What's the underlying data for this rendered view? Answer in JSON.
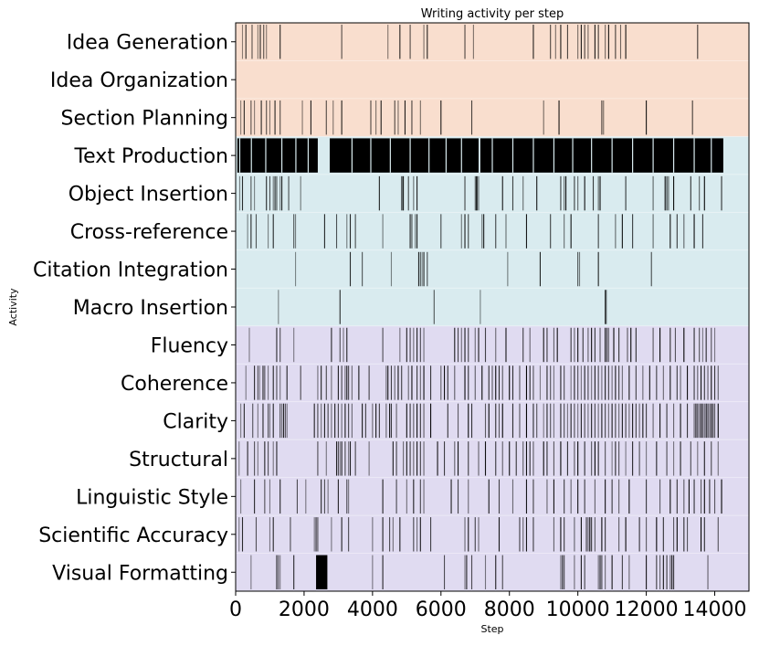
{
  "chart_data": {
    "type": "heatmap",
    "title": "Writing activity per step",
    "xlabel": "Step",
    "ylabel": "Activity",
    "xlim": [
      0,
      15000
    ],
    "x_ticks": [
      0,
      2000,
      4000,
      6000,
      8000,
      10000,
      12000,
      14000
    ],
    "x_tick_labels": [
      "0",
      "2000",
      "4000",
      "6000",
      "8000",
      "10000",
      "12000",
      "14000"
    ],
    "group_colors": {
      "planning": "#f9dece",
      "implementation": "#d9ebef",
      "revision": "#e0dbf1"
    },
    "rows": [
      {
        "label": "Idea Generation",
        "group": "planning",
        "events": [
          200,
          300,
          480,
          650,
          720,
          820,
          900,
          1300,
          3100,
          4450,
          4800,
          5100,
          5500,
          5600,
          6700,
          6950,
          8700,
          9200,
          9350,
          9500,
          9700,
          10000,
          10100,
          10200,
          10300,
          10500,
          10600,
          10800,
          10900,
          11100,
          11250,
          11400,
          13500
        ]
      },
      {
        "label": "Idea Organization",
        "group": "planning",
        "events": []
      },
      {
        "label": "Section Planning",
        "group": "planning",
        "events": [
          150,
          250,
          450,
          550,
          750,
          900,
          1000,
          1150,
          1300,
          1950,
          2200,
          2650,
          2850,
          3100,
          3950,
          4100,
          4250,
          4650,
          4750,
          4950,
          5150,
          5400,
          6000,
          6900,
          9000,
          9450,
          10700,
          10750,
          12000,
          13350
        ]
      },
      {
        "label": "Text Production",
        "group": "implementation",
        "events": [],
        "dense_segments": [
          [
            50,
            2400
          ],
          [
            2750,
            7100
          ],
          [
            7150,
            14250
          ]
        ],
        "gaps": [
          120,
          460,
          880,
          1350,
          1760,
          2120,
          3400,
          3950,
          4520,
          5100,
          5650,
          6150,
          6600,
          7500,
          8100,
          8700,
          9300,
          9850,
          10400,
          11000,
          11600,
          12200,
          12800,
          13400,
          13900
        ]
      },
      {
        "label": "Object Insertion",
        "group": "implementation",
        "events": [
          120,
          200,
          450,
          550,
          900,
          1000,
          1100,
          1150,
          1200,
          1300,
          1350,
          1550,
          1900,
          4200,
          4850,
          4880,
          4900,
          5050,
          5200,
          5300,
          6700,
          7000,
          7030,
          7060,
          7100,
          7800,
          8100,
          8400,
          8800,
          9500,
          9600,
          9650,
          9900,
          10000,
          10200,
          10450,
          10600,
          10650,
          11400,
          12200,
          12550,
          12600,
          12650,
          12800,
          13300,
          13550,
          13700,
          14200
        ]
      },
      {
        "label": "Cross-reference",
        "group": "implementation",
        "events": [
          350,
          450,
          600,
          950,
          1100,
          1700,
          1750,
          2600,
          2950,
          3250,
          3350,
          3500,
          4300,
          5100,
          5150,
          5250,
          5300,
          6000,
          6600,
          6700,
          6800,
          7200,
          7250,
          7600,
          7900,
          8500,
          9200,
          9600,
          9800,
          10600,
          11100,
          11300,
          11600,
          12200,
          12700,
          12900,
          13100,
          13400,
          13650
        ]
      },
      {
        "label": "Citation Integration",
        "group": "implementation",
        "events": [
          1750,
          3350,
          3700,
          4550,
          5350,
          5400,
          5450,
          5500,
          5600,
          7950,
          8900,
          10000,
          10050,
          10600,
          12150
        ]
      },
      {
        "label": "Macro Insertion",
        "group": "implementation",
        "events": [
          1250,
          3050,
          5800,
          7150,
          10800,
          10830
        ]
      },
      {
        "label": "Fluency",
        "group": "revision",
        "events": [
          400,
          1200,
          1300,
          1700,
          2800,
          3050,
          3150,
          3250,
          4300,
          4800,
          5000,
          5100,
          5200,
          5300,
          5400,
          5500,
          6400,
          6500,
          6600,
          6700,
          6800,
          7000,
          7100,
          7300,
          7600,
          7900,
          8400,
          8600,
          9000,
          9100,
          9300,
          9400,
          9800,
          9900,
          10000,
          10150,
          10300,
          10400,
          10500,
          10650,
          10800,
          10850,
          10900,
          11050,
          11200,
          11450,
          11550,
          11700,
          12200,
          12400,
          12700,
          12850,
          13100,
          13400,
          13550,
          13650,
          13750,
          13900,
          14000
        ]
      },
      {
        "label": "Coherence",
        "group": "revision",
        "events": [
          300,
          550,
          650,
          700,
          800,
          850,
          950,
          1100,
          1200,
          1300,
          1500,
          1900,
          2400,
          2500,
          2650,
          2800,
          3000,
          3100,
          3200,
          3250,
          3300,
          3400,
          3600,
          3900,
          4400,
          4450,
          4550,
          4650,
          4750,
          4850,
          5050,
          5150,
          5300,
          5400,
          5500,
          5700,
          6000,
          6100,
          6200,
          6400,
          6700,
          6800,
          7000,
          7200,
          7400,
          7500,
          7600,
          7700,
          7800,
          8000,
          8100,
          8300,
          8500,
          8600,
          8700,
          8900,
          9100,
          9200,
          9300,
          9500,
          9600,
          9800,
          9900,
          10000,
          10100,
          10200,
          10300,
          10400,
          10500,
          10600,
          10700,
          10800,
          10900,
          11000,
          11100,
          11200,
          11300,
          11500,
          11700,
          11900,
          12100,
          12300,
          12500,
          12700,
          12900,
          13000,
          13200,
          13400,
          13500,
          13600,
          13700,
          13800,
          13900,
          14000,
          14100
        ]
      },
      {
        "label": "Clarity",
        "group": "revision",
        "events": [
          150,
          250,
          500,
          650,
          800,
          950,
          1000,
          1100,
          1300,
          1350,
          1400,
          1450,
          1500,
          2300,
          2400,
          2500,
          2600,
          2700,
          2800,
          2900,
          3000,
          3100,
          3200,
          3300,
          3400,
          3700,
          3800,
          4000,
          4100,
          4200,
          4400,
          4500,
          4550,
          4700,
          5000,
          5100,
          5200,
          5300,
          5400,
          5500,
          5700,
          6200,
          6500,
          6800,
          6900,
          7300,
          7400,
          7600,
          7700,
          7800,
          8100,
          8300,
          8500,
          8700,
          8800,
          9000,
          9100,
          9200,
          9300,
          9500,
          9600,
          9700,
          9800,
          9900,
          10000,
          10100,
          10200,
          10300,
          10400,
          10500,
          10600,
          10700,
          10800,
          10900,
          11000,
          11100,
          11200,
          11300,
          11400,
          11500,
          11600,
          11700,
          11800,
          11900,
          12000,
          12200,
          12400,
          12600,
          12800,
          13000,
          13200,
          13400,
          13450,
          13500,
          13550,
          13600,
          13650,
          13700,
          13750,
          13800,
          13850,
          13900,
          13950,
          14000,
          14100
        ]
      },
      {
        "label": "Structural",
        "group": "revision",
        "events": [
          100,
          350,
          550,
          650,
          850,
          950,
          1100,
          1200,
          2400,
          2650,
          2950,
          3000,
          3050,
          3100,
          3200,
          3300,
          3350,
          3500,
          3900,
          4600,
          4700,
          4900,
          5000,
          5100,
          5200,
          5300,
          5400,
          5500,
          5900,
          6100,
          6400,
          6500,
          6800,
          7100,
          7300,
          7600,
          7800,
          8000,
          8200,
          8400,
          8500,
          8600,
          8700,
          9000,
          9100,
          9300,
          9500,
          9700,
          9900,
          10000,
          10200,
          10400,
          10500,
          10600,
          10800,
          11000,
          11100,
          11200,
          11400,
          11600,
          11800,
          12000,
          12300,
          12600,
          12800,
          13000,
          13300,
          13500,
          13700,
          13900,
          14100
        ]
      },
      {
        "label": "Linguistic Style",
        "group": "revision",
        "events": [
          150,
          550,
          850,
          1000,
          1300,
          1800,
          2050,
          2500,
          2600,
          2700,
          3000,
          3250,
          3300,
          4300,
          4700,
          5000,
          5200,
          5400,
          5500,
          6300,
          6500,
          6800,
          7400,
          7700,
          8100,
          8500,
          8700,
          9100,
          9300,
          9600,
          9800,
          10000,
          10200,
          10500,
          10800,
          11000,
          11200,
          11500,
          12000,
          12400,
          12700,
          12900,
          13100,
          13250,
          13400,
          13600,
          13700,
          13850,
          14000,
          14200
        ]
      },
      {
        "label": "Scientific Accuracy",
        "group": "revision",
        "events": [
          100,
          200,
          600,
          1000,
          1100,
          1600,
          2300,
          2350,
          2400,
          2800,
          3100,
          3300,
          4000,
          4300,
          4500,
          4600,
          4800,
          5200,
          5300,
          5400,
          5700,
          6700,
          6800,
          7000,
          7100,
          7700,
          8300,
          8400,
          8500,
          8700,
          9300,
          9500,
          9600,
          9900,
          10100,
          10250,
          10300,
          10350,
          10400,
          10500,
          10700,
          10800,
          11200,
          11400,
          11800,
          12000,
          12300,
          12500,
          12800,
          12900,
          13100,
          13200,
          13600,
          13700,
          14100
        ]
      },
      {
        "label": "Visual Formatting",
        "group": "revision",
        "events": [
          450,
          1200,
          1250,
          1300,
          1700,
          2650,
          4000,
          4300,
          6100,
          6700,
          6750,
          6900,
          7300,
          7600,
          7800,
          9500,
          9550,
          9600,
          9900,
          10100,
          10200,
          10600,
          10650,
          10700,
          10800,
          11000,
          11300,
          11500,
          12000,
          12300,
          12400,
          12500,
          12600,
          12700,
          12750,
          12800,
          13800
        ],
        "dense_segments": [
          [
            2350,
            2680
          ]
        ]
      }
    ]
  }
}
